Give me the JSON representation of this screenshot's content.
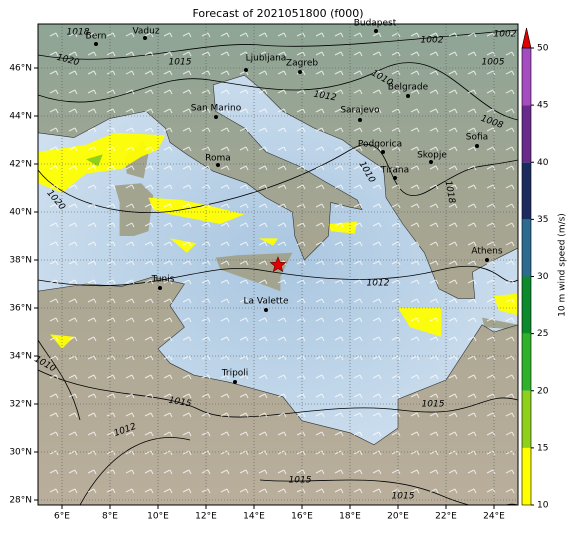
{
  "title": "Forecast of 2021051800 (f000)",
  "map": {
    "lon_ticks": [
      {
        "value": 6,
        "label": "6°E"
      },
      {
        "value": 8,
        "label": "8°E"
      },
      {
        "value": 10,
        "label": "10°E"
      },
      {
        "value": 12,
        "label": "12°E"
      },
      {
        "value": 14,
        "label": "14°E"
      },
      {
        "value": 16,
        "label": "16°E"
      },
      {
        "value": 18,
        "label": "18°E"
      },
      {
        "value": 20,
        "label": "20°E"
      },
      {
        "value": 22,
        "label": "22°E"
      },
      {
        "value": 24,
        "label": "24°E"
      }
    ],
    "lat_ticks": [
      {
        "value": 28,
        "label": "28°N"
      },
      {
        "value": 30,
        "label": "30°N"
      },
      {
        "value": 32,
        "label": "32°N"
      },
      {
        "value": 34,
        "label": "34°N"
      },
      {
        "value": 36,
        "label": "36°N"
      },
      {
        "value": 38,
        "label": "38°N"
      },
      {
        "value": 40,
        "label": "40°N"
      },
      {
        "value": 42,
        "label": "42°N"
      },
      {
        "value": 44,
        "label": "44°N"
      },
      {
        "value": 46,
        "label": "46°N"
      }
    ],
    "cities": [
      "Bern",
      "Vaduz",
      "Budapest",
      "Ljubljana",
      "Zagreb",
      "San Marino",
      "Belgrade",
      "Sarajevo",
      "Roma",
      "Podgorica",
      "Sofia",
      "Skopje",
      "Tirana",
      "Athens",
      "Tunis",
      "La Valette",
      "Tripoli"
    ],
    "isobar_labels": [
      1018,
      1020,
      1015,
      1002,
      1002,
      1005,
      1010,
      1012,
      1008,
      1010,
      1018,
      1020,
      1012,
      1010,
      1015,
      1012,
      1015,
      1015,
      1015
    ]
  },
  "colorbar": {
    "label": "10 m wind speed (m/s)",
    "range": [
      10,
      50
    ],
    "ticks": [
      10,
      15,
      20,
      25,
      30,
      35,
      40,
      45,
      50
    ],
    "colors": [
      "#ffff00",
      "#8fd11a",
      "#2fb12a",
      "#0c8a2c",
      "#2c6b8f",
      "#1b2b5e",
      "#6a2a8c",
      "#a54cc0"
    ],
    "extend_color": "#e00000"
  }
}
